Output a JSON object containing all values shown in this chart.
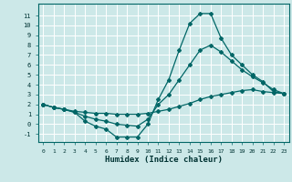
{
  "xlabel": "Humidex (Indice chaleur)",
  "bg_color": "#cce8e8",
  "grid_color": "#ffffff",
  "line_color": "#006666",
  "xlim": [
    -0.5,
    23.5
  ],
  "ylim": [
    -1.8,
    12.2
  ],
  "xticks": [
    0,
    1,
    2,
    3,
    4,
    5,
    6,
    7,
    8,
    9,
    10,
    11,
    12,
    13,
    14,
    15,
    16,
    17,
    18,
    19,
    20,
    21,
    22,
    23
  ],
  "yticks": [
    -1,
    0,
    1,
    2,
    3,
    4,
    5,
    6,
    7,
    8,
    9,
    10,
    11
  ],
  "line1_x": [
    0,
    1,
    2,
    3,
    4,
    5,
    6,
    7,
    8,
    9,
    10,
    11,
    12,
    13,
    14,
    15,
    16,
    17,
    18,
    19,
    20,
    21,
    22,
    23
  ],
  "line1_y": [
    2.0,
    1.7,
    1.5,
    1.2,
    0.3,
    -0.2,
    -0.5,
    -1.3,
    -1.3,
    -1.3,
    0.0,
    2.5,
    4.5,
    7.5,
    10.2,
    11.2,
    11.2,
    8.7,
    7.0,
    6.0,
    5.0,
    4.3,
    3.3,
    3.1
  ],
  "line2_x": [
    0,
    1,
    2,
    3,
    4,
    5,
    6,
    7,
    8,
    9,
    10,
    11,
    12,
    13,
    14,
    15,
    16,
    17,
    18,
    19,
    20,
    21,
    22,
    23
  ],
  "line2_y": [
    2.0,
    1.7,
    1.5,
    1.3,
    1.2,
    1.1,
    1.1,
    1.0,
    1.0,
    1.0,
    1.1,
    1.3,
    1.5,
    1.8,
    2.1,
    2.5,
    2.8,
    3.0,
    3.2,
    3.4,
    3.5,
    3.3,
    3.2,
    3.1
  ],
  "line3_x": [
    0,
    1,
    2,
    3,
    4,
    5,
    6,
    7,
    8,
    9,
    10,
    11,
    12,
    13,
    14,
    15,
    16,
    17,
    18,
    19,
    20,
    21,
    22,
    23
  ],
  "line3_y": [
    2.0,
    1.7,
    1.5,
    1.2,
    0.8,
    0.5,
    0.3,
    0.0,
    -0.1,
    -0.2,
    0.5,
    2.0,
    3.0,
    4.5,
    6.0,
    7.5,
    8.0,
    7.3,
    6.4,
    5.5,
    4.8,
    4.2,
    3.5,
    3.1
  ]
}
